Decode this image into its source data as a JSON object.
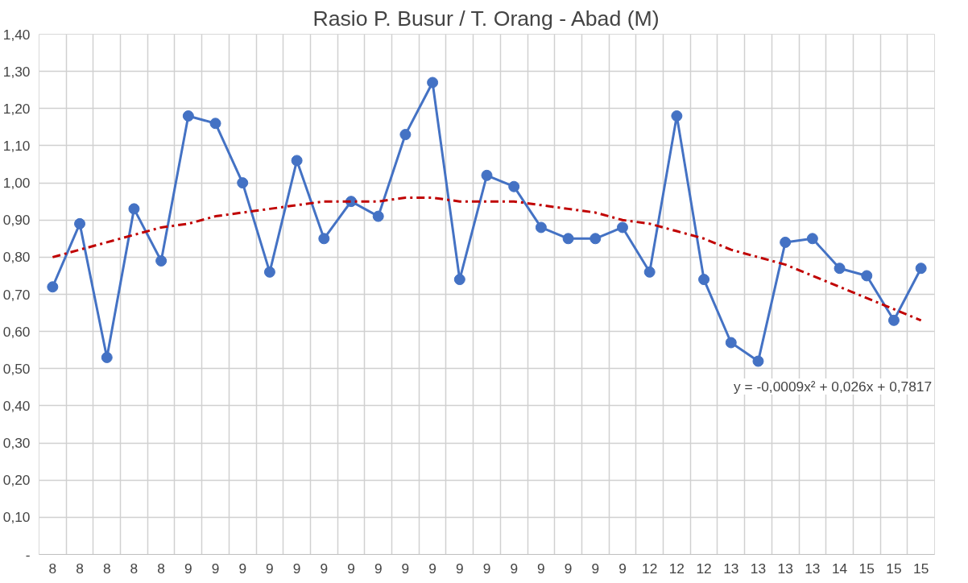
{
  "chart_data": {
    "type": "line",
    "title": "Rasio P. Busur / T. Orang - Abad (M)",
    "categories": [
      "8",
      "8",
      "8",
      "8",
      "8",
      "9",
      "9",
      "9",
      "9",
      "9",
      "9",
      "9",
      "9",
      "9",
      "9",
      "9",
      "9",
      "9",
      "9",
      "9",
      "9",
      "9",
      "12",
      "12",
      "12",
      "13",
      "13",
      "13",
      "13",
      "14",
      "15",
      "15",
      "15"
    ],
    "series": [
      {
        "color": "#4472c4",
        "marker": "circle",
        "line_style": "solid",
        "values": [
          0.72,
          0.89,
          0.53,
          0.93,
          0.79,
          1.18,
          1.16,
          1.0,
          0.76,
          1.06,
          0.85,
          0.95,
          0.91,
          1.13,
          1.27,
          0.74,
          1.02,
          0.99,
          0.88,
          0.85,
          0.85,
          0.88,
          0.76,
          1.18,
          0.74,
          0.57,
          0.52,
          0.84,
          0.85,
          0.77,
          0.75,
          0.63,
          0.77
        ]
      },
      {
        "color": "#c00000",
        "marker": "none",
        "line_style": "dashed",
        "values": [
          0.8,
          0.82,
          0.84,
          0.86,
          0.88,
          0.89,
          0.91,
          0.92,
          0.93,
          0.94,
          0.95,
          0.95,
          0.95,
          0.96,
          0.96,
          0.95,
          0.95,
          0.95,
          0.94,
          0.93,
          0.92,
          0.9,
          0.89,
          0.87,
          0.85,
          0.82,
          0.8,
          0.78,
          0.75,
          0.72,
          0.69,
          0.66,
          0.63
        ]
      }
    ],
    "ylim": [
      0,
      1.4
    ],
    "yticks": [
      {
        "value": 0,
        "label": "-"
      },
      {
        "value": 0.1,
        "label": "0,10"
      },
      {
        "value": 0.2,
        "label": "0,20"
      },
      {
        "value": 0.3,
        "label": "0,30"
      },
      {
        "value": 0.4,
        "label": "0,40"
      },
      {
        "value": 0.5,
        "label": "0,50"
      },
      {
        "value": 0.6,
        "label": "0,60"
      },
      {
        "value": 0.7,
        "label": "0,70"
      },
      {
        "value": 0.8,
        "label": "0,80"
      },
      {
        "value": 0.9,
        "label": "0,90"
      },
      {
        "value": 1.0,
        "label": "1,00"
      },
      {
        "value": 1.1,
        "label": "1,10"
      },
      {
        "value": 1.2,
        "label": "1,20"
      },
      {
        "value": 1.3,
        "label": "1,30"
      },
      {
        "value": 1.4,
        "label": "1,40"
      }
    ],
    "grid": true,
    "annotations": [
      "y = -0,0009x² + 0,026x + 0,7817"
    ]
  }
}
